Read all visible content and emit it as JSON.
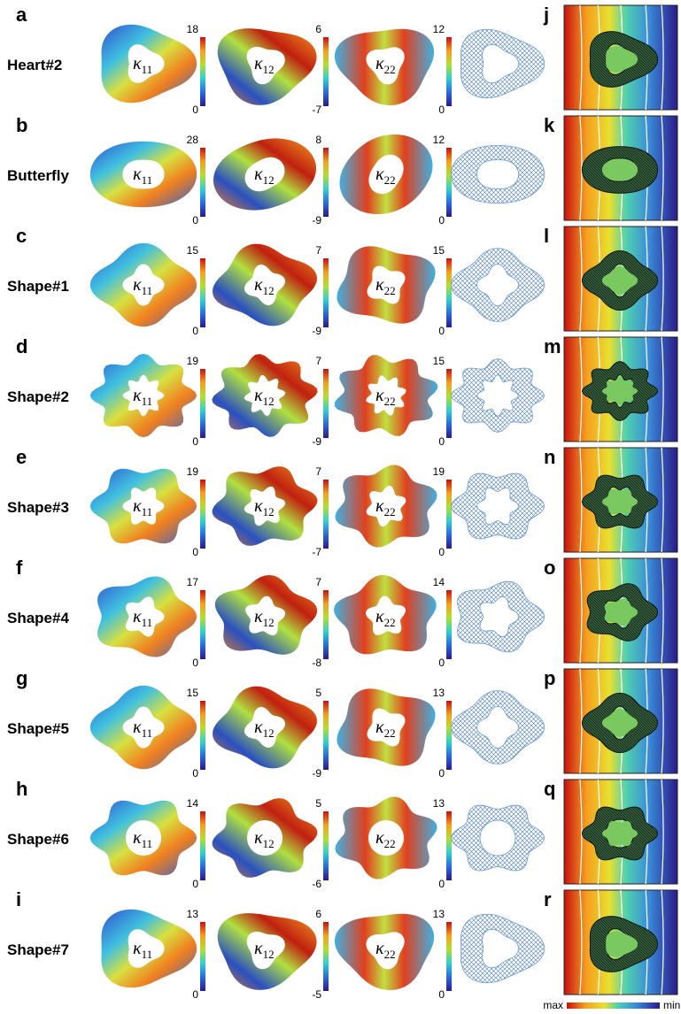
{
  "rows": [
    {
      "letter": "a",
      "name": "Heart#2",
      "right_letter": "j",
      "panels": [
        {
          "symbol": "κ",
          "sub": "11",
          "max": 18,
          "min": 0
        },
        {
          "symbol": "κ",
          "sub": "12",
          "max": 6,
          "min": -7
        },
        {
          "symbol": "κ",
          "sub": "22",
          "max": 12,
          "min": 0
        }
      ]
    },
    {
      "letter": "b",
      "name": "Butterfly",
      "right_letter": "k",
      "panels": [
        {
          "symbol": "κ",
          "sub": "11",
          "max": 28,
          "min": 0
        },
        {
          "symbol": "κ",
          "sub": "12",
          "max": 8,
          "min": -9
        },
        {
          "symbol": "κ",
          "sub": "22",
          "max": 12,
          "min": 0
        }
      ]
    },
    {
      "letter": "c",
      "name": "Shape#1",
      "right_letter": "l",
      "panels": [
        {
          "symbol": "κ",
          "sub": "11",
          "max": 15,
          "min": 0
        },
        {
          "symbol": "κ",
          "sub": "12",
          "max": 7,
          "min": -9
        },
        {
          "symbol": "κ",
          "sub": "22",
          "max": 15,
          "min": 0
        }
      ]
    },
    {
      "letter": "d",
      "name": "Shape#2",
      "right_letter": "m",
      "panels": [
        {
          "symbol": "κ",
          "sub": "11",
          "max": 19,
          "min": 0
        },
        {
          "symbol": "κ",
          "sub": "12",
          "max": 7,
          "min": -9
        },
        {
          "symbol": "κ",
          "sub": "22",
          "max": 15,
          "min": 0
        }
      ]
    },
    {
      "letter": "e",
      "name": "Shape#3",
      "right_letter": "n",
      "panels": [
        {
          "symbol": "κ",
          "sub": "11",
          "max": 19,
          "min": 0
        },
        {
          "symbol": "κ",
          "sub": "12",
          "max": 7,
          "min": -7
        },
        {
          "symbol": "κ",
          "sub": "22",
          "max": 19,
          "min": 0
        }
      ]
    },
    {
      "letter": "f",
      "name": "Shape#4",
      "right_letter": "o",
      "panels": [
        {
          "symbol": "κ",
          "sub": "11",
          "max": 17,
          "min": 0
        },
        {
          "symbol": "κ",
          "sub": "12",
          "max": 7,
          "min": -8
        },
        {
          "symbol": "κ",
          "sub": "22",
          "max": 14,
          "min": 0
        }
      ]
    },
    {
      "letter": "g",
      "name": "Shape#5",
      "right_letter": "p",
      "panels": [
        {
          "symbol": "κ",
          "sub": "11",
          "max": 15,
          "min": 0
        },
        {
          "symbol": "κ",
          "sub": "12",
          "max": 5,
          "min": -9
        },
        {
          "symbol": "κ",
          "sub": "22",
          "max": 13,
          "min": 0
        }
      ]
    },
    {
      "letter": "h",
      "name": "Shape#6",
      "right_letter": "q",
      "panels": [
        {
          "symbol": "κ",
          "sub": "11",
          "max": 14,
          "min": 0
        },
        {
          "symbol": "κ",
          "sub": "12",
          "max": 5,
          "min": -6
        },
        {
          "symbol": "κ",
          "sub": "22",
          "max": 13,
          "min": 0
        }
      ]
    },
    {
      "letter": "i",
      "name": "Shape#7",
      "right_letter": "r",
      "panels": [
        {
          "symbol": "κ",
          "sub": "11",
          "max": 13,
          "min": 0
        },
        {
          "symbol": "κ",
          "sub": "12",
          "max": 6,
          "min": -5
        },
        {
          "symbol": "κ",
          "sub": "22",
          "max": 13,
          "min": 0
        }
      ]
    }
  ],
  "legend": {
    "max": "max",
    "min": "min"
  }
}
